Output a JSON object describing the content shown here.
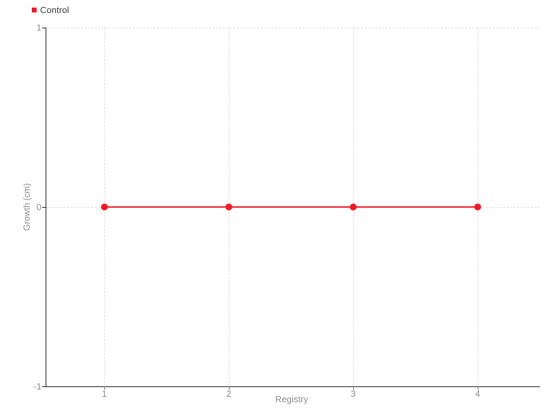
{
  "chart_data": {
    "type": "line",
    "title": "",
    "xlabel": "Registry",
    "ylabel": "Growth (cm)",
    "x": [
      1,
      2,
      3,
      4
    ],
    "series": [
      {
        "name": "Control",
        "values": [
          0,
          0,
          0,
          0
        ],
        "color": "#ed1c29",
        "marker": "circle",
        "marker_size": 5,
        "line_width": 2
      }
    ],
    "xticks": [
      1,
      2,
      3,
      4
    ],
    "xtick_labels": [
      "1",
      "2",
      "3",
      "4"
    ],
    "yticks": [
      1,
      0,
      -1
    ],
    "ytick_labels": [
      "1",
      "0",
      "-1"
    ],
    "xlim": [
      0.533,
      4.5
    ],
    "ylim": [
      -1,
      1
    ],
    "grid": true,
    "grid_style": "dashed",
    "legend_position": "top-left",
    "background": "#ffffff"
  },
  "colors": {
    "series_red": "#ed1c29",
    "axis": "#1a1a1a",
    "grid": "#dcdcdc",
    "tick_text": "#8b8b8b",
    "legend_text": "#3c3c3c"
  }
}
